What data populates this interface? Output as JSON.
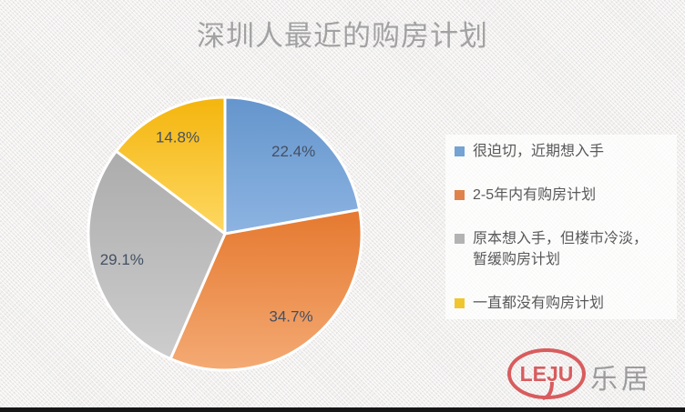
{
  "header": {
    "title": "深圳人最近的购房计划"
  },
  "chart_data": {
    "type": "pie",
    "title": "深圳人最近的购房计划",
    "direction": "clockwise",
    "start_angle_deg": 0,
    "legend_position": "right",
    "label_color": "#445063",
    "slices": [
      {
        "label": "很迫切，近期想入手",
        "value": 22.4,
        "display": "22.4%",
        "color_top": "#6495cc",
        "color_bottom": "#8db4e2",
        "legend_color": "#74a3d4"
      },
      {
        "label": "2-5年内有购房计划",
        "value": 34.7,
        "display": "34.7%",
        "color_top": "#e5792f",
        "color_bottom": "#f4aa74",
        "legend_color": "#e0834a"
      },
      {
        "label": "原本想入手，但楼市冷淡，暂缓购房计划",
        "value": 29.1,
        "display": "29.1%",
        "color_top": "#acacac",
        "color_bottom": "#cdcdcd",
        "legend_color": "#b3b3b3"
      },
      {
        "label": "一直都没有购房计划",
        "value": 14.8,
        "display": "14.8%",
        "color_top": "#f4b50d",
        "color_bottom": "#fed863",
        "legend_color": "#f0c62f"
      }
    ]
  },
  "logo": {
    "mark": "LEJU",
    "text": "乐居",
    "mark_color": "#d85c5e",
    "text_color": "#9c9c9c"
  }
}
